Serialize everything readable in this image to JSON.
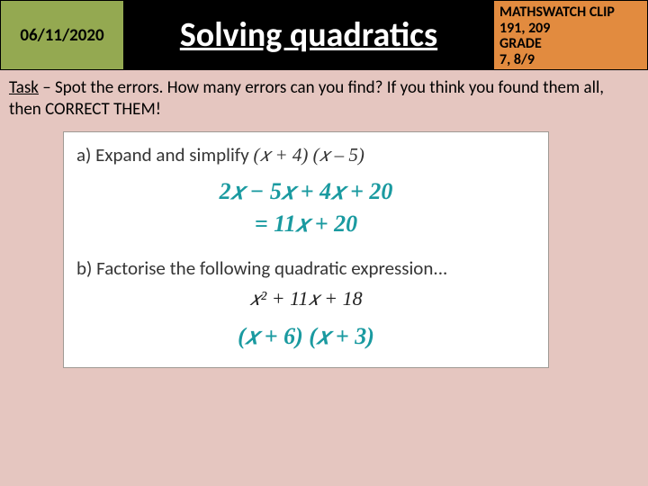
{
  "colors": {
    "page_bg": "#e5c6c0",
    "date_bg": "#94a951",
    "title_bg": "#000000",
    "title_fg": "#ffffff",
    "clip_bg": "#e28b3f",
    "panel_bg": "#ffffff",
    "panel_border": "#a09a94",
    "accent_teal": "#1a9aa0",
    "text": "#000000"
  },
  "header": {
    "date": "06/11/2020",
    "title": "Solving quadratics",
    "clip_line1": "MATHSWATCH CLIP",
    "clip_line2": "191, 209",
    "clip_line3": "GRADE",
    "clip_line4": "7, 8/9"
  },
  "task": {
    "label": "Task",
    "text": " – Spot the errors. How many errors can you find? If you think you found them all, then CORRECT THEM!"
  },
  "panel": {
    "qa_label": "a) Expand and simplify ",
    "qa_math": "(𝑥  +  4) (𝑥 –  5)",
    "work_a_line1": "2𝑥 − 5𝑥 + 4𝑥 + 20",
    "work_a_line2": "= 11𝑥 + 20",
    "qb_label": "b) Factorise the following quadratic expression...",
    "qb_math": "𝑥²  +  11𝑥  +  18",
    "work_b": "(𝑥 + 6) (𝑥 + 3)"
  }
}
